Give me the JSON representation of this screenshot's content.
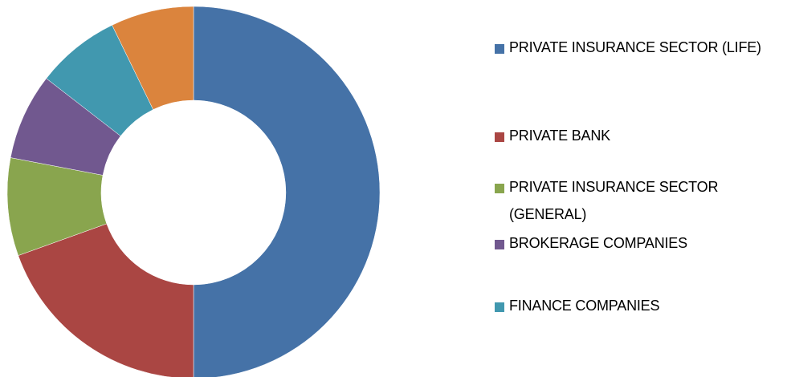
{
  "chart_data": {
    "type": "donut",
    "categories": [
      "PRIVATE INSURANCE SECTOR (LIFE)",
      "PRIVATE BANK",
      "PRIVATE INSURANCE SECTOR (GENERAL)",
      "BROKERAGE COMPANIES",
      "FINANCE COMPANIES",
      null
    ],
    "values": [
      50,
      19.5,
      8.5,
      7.5,
      7.3,
      7.2
    ],
    "colors": [
      "#4572a7",
      "#aa4643",
      "#89a54e",
      "#71588f",
      "#4198af",
      "#db843d"
    ],
    "legend": "right"
  }
}
